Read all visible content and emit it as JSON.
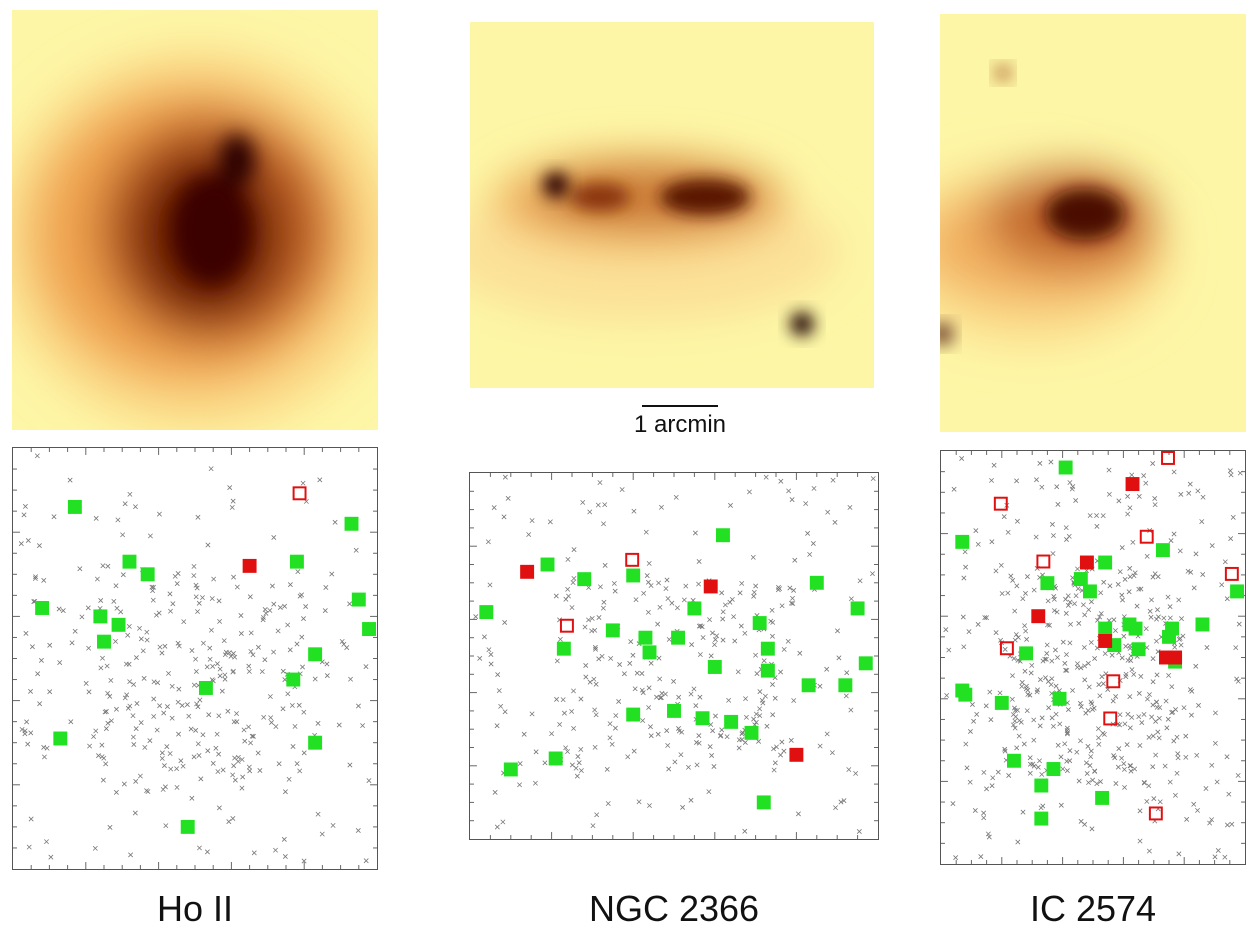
{
  "panels": [
    {
      "label": "Ho II",
      "cross_seed": 11,
      "cross_count": 360,
      "green": [
        [
          0.17,
          0.14
        ],
        [
          0.32,
          0.27
        ],
        [
          0.37,
          0.3
        ],
        [
          0.78,
          0.27
        ],
        [
          0.93,
          0.18
        ],
        [
          0.08,
          0.38
        ],
        [
          0.24,
          0.4
        ],
        [
          0.29,
          0.42
        ],
        [
          0.25,
          0.46
        ],
        [
          0.95,
          0.36
        ],
        [
          0.99,
          0.43
        ],
        [
          0.83,
          0.49
        ],
        [
          0.77,
          0.55
        ],
        [
          0.53,
          0.57
        ],
        [
          0.13,
          0.69
        ],
        [
          0.83,
          0.7
        ],
        [
          0.48,
          0.9
        ]
      ],
      "red_filled": [
        [
          0.65,
          0.28
        ]
      ],
      "red_open": [
        [
          0.79,
          0.11
        ]
      ]
    },
    {
      "label": "NGC 2366",
      "cross_seed": 23,
      "cross_count": 340,
      "green": [
        [
          0.62,
          0.17
        ],
        [
          0.19,
          0.25
        ],
        [
          0.28,
          0.29
        ],
        [
          0.4,
          0.28
        ],
        [
          0.85,
          0.3
        ],
        [
          0.55,
          0.37
        ],
        [
          0.04,
          0.38
        ],
        [
          0.95,
          0.37
        ],
        [
          0.35,
          0.43
        ],
        [
          0.43,
          0.45
        ],
        [
          0.51,
          0.45
        ],
        [
          0.71,
          0.41
        ],
        [
          0.44,
          0.49
        ],
        [
          0.23,
          0.48
        ],
        [
          0.73,
          0.48
        ],
        [
          0.6,
          0.53
        ],
        [
          0.73,
          0.54
        ],
        [
          0.97,
          0.52
        ],
        [
          0.83,
          0.58
        ],
        [
          0.92,
          0.58
        ],
        [
          0.4,
          0.66
        ],
        [
          0.5,
          0.65
        ],
        [
          0.57,
          0.67
        ],
        [
          0.64,
          0.68
        ],
        [
          0.69,
          0.71
        ],
        [
          0.1,
          0.81
        ],
        [
          0.21,
          0.78
        ],
        [
          0.72,
          0.9
        ]
      ],
      "red_filled": [
        [
          0.14,
          0.27
        ],
        [
          0.59,
          0.31
        ],
        [
          0.8,
          0.77
        ]
      ],
      "red_open": [
        [
          0.4,
          0.24
        ],
        [
          0.24,
          0.42
        ]
      ]
    },
    {
      "label": "IC 2574",
      "cross_seed": 37,
      "cross_count": 520,
      "green": [
        [
          0.41,
          0.04
        ],
        [
          0.07,
          0.22
        ],
        [
          0.73,
          0.24
        ],
        [
          0.54,
          0.27
        ],
        [
          0.35,
          0.32
        ],
        [
          0.46,
          0.31
        ],
        [
          0.49,
          0.34
        ],
        [
          1.0,
          0.34
        ],
        [
          0.54,
          0.43
        ],
        [
          0.62,
          0.42
        ],
        [
          0.64,
          0.43
        ],
        [
          0.86,
          0.42
        ],
        [
          0.76,
          0.43
        ],
        [
          0.75,
          0.45
        ],
        [
          0.57,
          0.47
        ],
        [
          0.65,
          0.48
        ],
        [
          0.28,
          0.49
        ],
        [
          0.77,
          0.51
        ],
        [
          0.07,
          0.58
        ],
        [
          0.08,
          0.59
        ],
        [
          0.2,
          0.61
        ],
        [
          0.39,
          0.6
        ],
        [
          0.24,
          0.75
        ],
        [
          0.37,
          0.77
        ],
        [
          0.33,
          0.81
        ],
        [
          0.53,
          0.84
        ],
        [
          0.33,
          0.89
        ]
      ],
      "red_filled": [
        [
          0.63,
          0.08
        ],
        [
          0.48,
          0.27
        ],
        [
          0.32,
          0.4
        ],
        [
          0.54,
          0.46
        ],
        [
          0.74,
          0.5
        ],
        [
          0.77,
          0.5
        ]
      ],
      "red_open": [
        [
          0.75,
          0.01
        ],
        [
          0.2,
          0.13
        ],
        [
          0.68,
          0.21
        ],
        [
          0.34,
          0.27
        ],
        [
          0.96,
          0.3
        ],
        [
          0.22,
          0.48
        ],
        [
          0.57,
          0.56
        ],
        [
          0.56,
          0.65
        ],
        [
          0.71,
          0.88
        ]
      ]
    }
  ],
  "scale_bar_label": "1 arcmin",
  "colors": {
    "background_yellow": "#fdf6a6",
    "galaxy_dark": "#3a0400",
    "green_marker": "#22e022",
    "red_marker": "#e01010",
    "cross": "#777777"
  }
}
